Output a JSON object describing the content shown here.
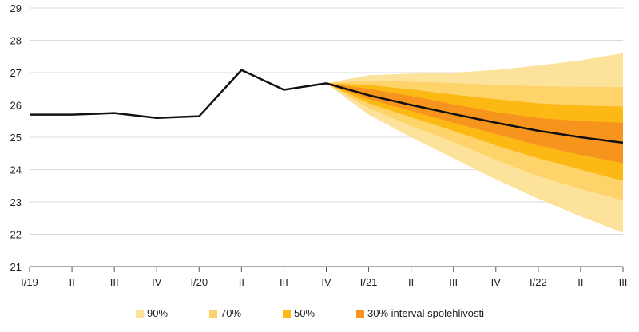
{
  "chart_data": {
    "type": "area",
    "title": "",
    "xlabel": "",
    "ylabel": "",
    "ylim": [
      21,
      29
    ],
    "yticks": [
      21,
      22,
      23,
      24,
      25,
      26,
      27,
      28,
      29
    ],
    "grid": true,
    "categories": [
      "I/19",
      "II",
      "III",
      "IV",
      "I/20",
      "II",
      "III",
      "IV",
      "I/21",
      "II",
      "III",
      "IV",
      "I/22",
      "II",
      "III"
    ],
    "series": [
      {
        "values": [
          25.7,
          25.7,
          25.75,
          25.6,
          25.65,
          27.08,
          26.47,
          26.67,
          26.3,
          26.0,
          25.72,
          25.45,
          25.2,
          25.0,
          24.83
        ]
      }
    ],
    "fan": {
      "start_index": 7,
      "bands": [
        {
          "name": "90%",
          "lower": [
            26.67,
            25.7,
            25.0,
            24.35,
            23.7,
            23.1,
            22.55,
            22.05
          ],
          "upper": [
            26.67,
            26.92,
            26.97,
            27.0,
            27.08,
            27.22,
            27.38,
            27.6
          ]
        },
        {
          "name": "70%",
          "lower": [
            26.67,
            25.9,
            25.35,
            24.85,
            24.3,
            23.8,
            23.4,
            23.05
          ],
          "upper": [
            26.67,
            26.75,
            26.72,
            26.68,
            26.62,
            26.58,
            26.56,
            26.55
          ]
        },
        {
          "name": "50%",
          "lower": [
            26.67,
            26.05,
            25.62,
            25.2,
            24.75,
            24.35,
            24.0,
            23.65
          ],
          "upper": [
            26.67,
            26.62,
            26.48,
            26.32,
            26.18,
            26.05,
            25.98,
            25.95
          ]
        },
        {
          "name": "30% interval spolehlivosti",
          "lower": [
            26.67,
            26.18,
            25.82,
            25.45,
            25.1,
            24.75,
            24.45,
            24.2
          ],
          "upper": [
            26.67,
            26.5,
            26.28,
            26.02,
            25.78,
            25.6,
            25.5,
            25.45
          ]
        }
      ]
    },
    "legend": {
      "placement": "bottom",
      "entries": [
        "90%",
        "70%",
        "50%",
        "30% interval spolehlivosti"
      ]
    },
    "colors": {
      "line": "#111111",
      "bands": [
        "#FDE29B",
        "#FDD36A",
        "#FDB913",
        "#F7941D"
      ],
      "grid": "#d9d9d9",
      "axis": "#555555"
    }
  }
}
